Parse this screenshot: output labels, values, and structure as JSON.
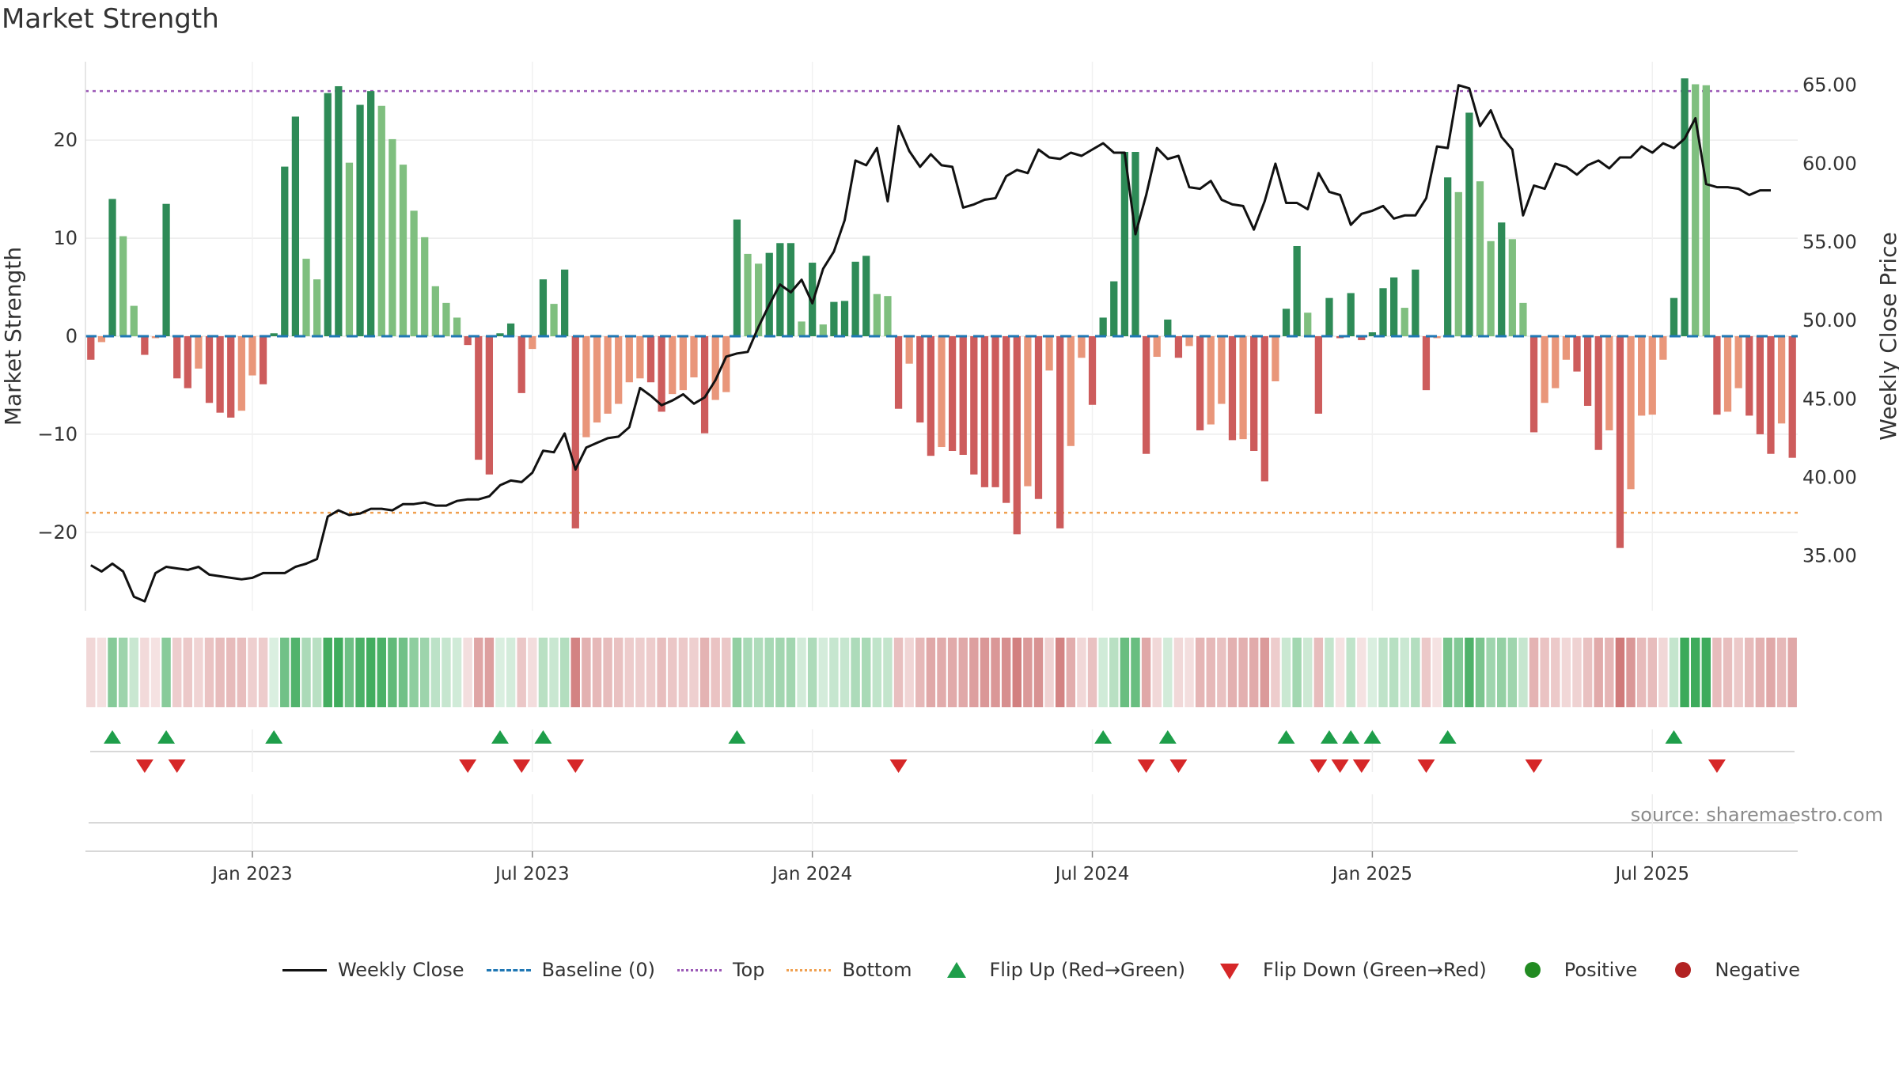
{
  "title": "Market Strength",
  "source": "source: sharemaestro.com",
  "legend": {
    "close": "Weekly Close",
    "baseline": "Baseline (0)",
    "top": "Top",
    "bottom": "Bottom",
    "flip_up": "Flip Up (Red→Green)",
    "flip_down": "Flip Down (Green→Red)",
    "positive": "Positive",
    "negative": "Negative"
  },
  "colors": {
    "strong_pos": "#2e8b57",
    "weak_pos": "#7fbf7f",
    "strong_neg": "#cd5c5c",
    "weak_neg": "#e9967a",
    "close_line": "#111111",
    "baseline": "#1f77b4",
    "top": "#9b59b6",
    "bottom": "#f0a050",
    "flip_up": "#1e9e4a",
    "flip_down": "#d62728",
    "positive_dot": "#228b22",
    "negative_dot": "#b22222"
  },
  "chart_data": {
    "type": "bar",
    "ylabel_left": "Market Strength",
    "ylabel_right": "Weekly Close Price",
    "y_ticks_left": [
      "20",
      "10",
      "0",
      "−10",
      "−20"
    ],
    "y_ticks_right": [
      "65.00",
      "60.00",
      "55.00",
      "50.00",
      "45.00",
      "40.00",
      "35.00"
    ],
    "ylim_left": [
      -28,
      28
    ],
    "ylim_right": [
      31.5,
      66.5
    ],
    "top_level": 25,
    "bottom_level": -18,
    "x_ticks": [
      "Jan 2023",
      "Jul 2023",
      "Jan 2024",
      "Jul 2024",
      "Jan 2025",
      "Jul 2025"
    ],
    "x_tick_weeks": [
      15,
      41,
      67,
      93,
      119,
      145
    ],
    "strength": [
      -2.4,
      -0.6,
      14,
      10.2,
      3.1,
      -1.9,
      -0.2,
      13.5,
      -4.3,
      -5.3,
      -3.3,
      -6.8,
      -7.8,
      -8.3,
      -7.6,
      -4,
      -4.9,
      0.3,
      17.3,
      22.4,
      7.9,
      5.8,
      24.8,
      25.5,
      17.7,
      23.6,
      25,
      23.5,
      20.1,
      17.5,
      12.8,
      10.1,
      5.1,
      3.4,
      1.9,
      -0.9,
      -12.6,
      -14.1,
      0.3,
      1.3,
      -5.8,
      -1.3,
      5.8,
      3.3,
      6.8,
      -19.6,
      -10.3,
      -8.8,
      -7.9,
      -6.9,
      -4.7,
      -4.3,
      -4.7,
      -7.7,
      -5.9,
      -5.5,
      -4.2,
      -9.9,
      -6.5,
      -5.7,
      11.9,
      8.4,
      7.4,
      8.5,
      9.5,
      9.5,
      1.5,
      7.5,
      1.2,
      3.5,
      3.6,
      7.6,
      8.2,
      4.3,
      4.1,
      -7.4,
      -2.8,
      -8.8,
      -12.2,
      -11.3,
      -11.7,
      -12.1,
      -14.1,
      -15.4,
      -15.4,
      -17,
      -20.2,
      -15.3,
      -16.6,
      -3.5,
      -19.6,
      -11.2,
      -2.2,
      -7,
      1.9,
      5.6,
      18.8,
      18.8,
      -12,
      -2.1,
      1.7,
      -2.2,
      -1,
      -9.6,
      -9,
      -6.9,
      -10.6,
      -10.5,
      -11.7,
      -14.8,
      -4.6,
      2.8,
      9.2,
      2.4,
      -7.9,
      3.9,
      -0.2,
      4.4,
      -0.4,
      0.4,
      4.9,
      6,
      2.9,
      6.8,
      -5.5,
      -0.2,
      16.2,
      14.7,
      22.8,
      15.8,
      9.7,
      11.6,
      9.9,
      3.4,
      -9.8,
      -6.8,
      -5.3,
      -2.4,
      -3.6,
      -7.1,
      -11.6,
      -9.6,
      -21.6,
      -15.6,
      -8.1,
      -8,
      -2.4,
      3.9,
      26.3,
      25.7,
      25.6,
      -8,
      -7.7,
      -5.3,
      -8.1,
      -10,
      -12,
      -8.9,
      -12.4
    ],
    "weekly_close": [
      34.4,
      34,
      34.5,
      34,
      32.4,
      32.1,
      33.9,
      34.3,
      34.2,
      34.1,
      34.3,
      33.8,
      33.7,
      33.6,
      33.5,
      33.6,
      33.9,
      33.9,
      33.9,
      34.3,
      34.5,
      34.8,
      37.5,
      37.9,
      37.6,
      37.7,
      38,
      38,
      37.9,
      38.3,
      38.3,
      38.4,
      38.2,
      38.2,
      38.5,
      38.6,
      38.6,
      38.8,
      39.5,
      39.8,
      39.7,
      40.3,
      41.7,
      41.6,
      42.8,
      40.5,
      41.9,
      42.2,
      42.5,
      42.6,
      43.2,
      45.7,
      45.2,
      44.6,
      44.9,
      45.3,
      44.7,
      45.1,
      46.2,
      47.7,
      47.9,
      48,
      49.6,
      51,
      52.3,
      51.8,
      52.6,
      51.1,
      53.3,
      54.4,
      56.4,
      60.2,
      59.9,
      61,
      57.6,
      62.4,
      60.8,
      59.8,
      60.6,
      59.9,
      59.8,
      57.2,
      57.4,
      57.7,
      57.8,
      59.2,
      59.6,
      59.4,
      60.9,
      60.4,
      60.3,
      60.7,
      60.5,
      60.9,
      61.3,
      60.7,
      60.7,
      55.5,
      58,
      61,
      60.3,
      60.5,
      58.5,
      58.4,
      58.9,
      57.7,
      57.4,
      57.3,
      55.8,
      57.6,
      60,
      57.5,
      57.5,
      57.1,
      59.4,
      58.2,
      58,
      56.1,
      56.8,
      57,
      57.3,
      56.5,
      56.7,
      56.7,
      57.8,
      61.1,
      61,
      65,
      64.8,
      62.4,
      63.4,
      61.7,
      60.9,
      56.7,
      58.6,
      58.4,
      60,
      59.8,
      59.3,
      59.9,
      60.2,
      59.7,
      60.4,
      60.4,
      61.1,
      60.7,
      61.3,
      61,
      61.6,
      62.9,
      58.7,
      58.5,
      58.5,
      58.4,
      58,
      58.3,
      58.3
    ]
  }
}
